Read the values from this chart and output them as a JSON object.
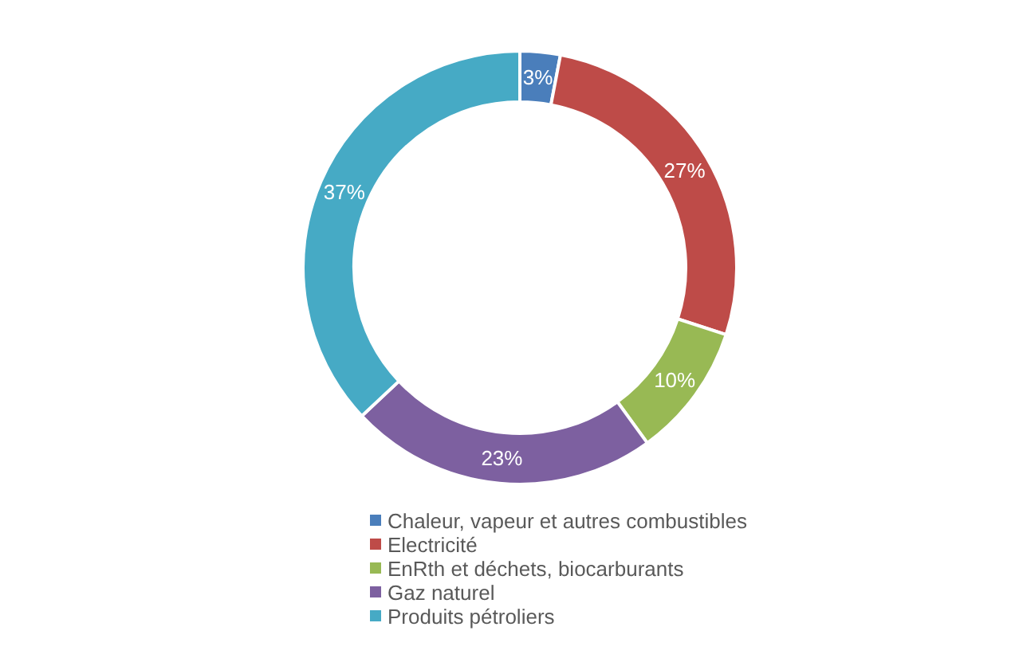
{
  "chart_data": {
    "type": "donut",
    "categories": [
      "Chaleur, vapeur et autres combustibles",
      "Electricité",
      "EnRth et déchets, biocarburants",
      "Gaz naturel",
      "Produits pétroliers"
    ],
    "values": [
      3,
      27,
      10,
      23,
      37
    ],
    "colors": [
      "#4a7ebb",
      "#be4b48",
      "#98b954",
      "#7d60a0",
      "#46aac5"
    ],
    "value_labels": [
      "3%",
      "27%",
      "10%",
      "23%",
      "37%"
    ],
    "legend": "bottom"
  }
}
